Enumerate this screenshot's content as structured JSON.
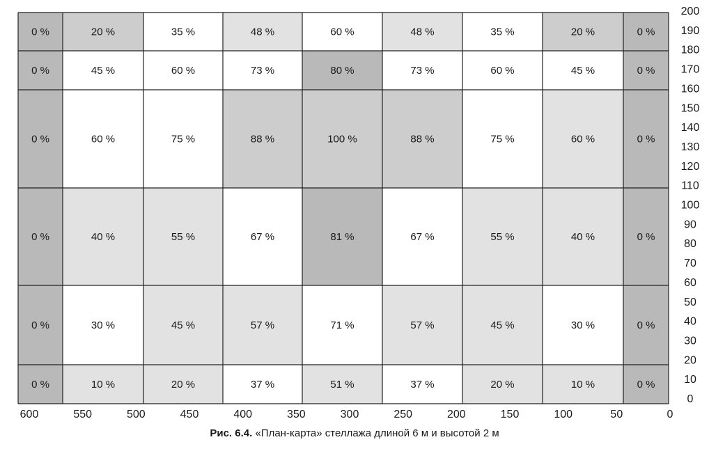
{
  "chart_data": {
    "type": "table",
    "caption_label": "Рис. 6.4.",
    "caption_text": "«План-карта» стеллажа длиной 6 м и высотой 2 м",
    "x_ticks": [
      "600",
      "550",
      "500",
      "450",
      "400",
      "350",
      "300",
      "250",
      "200",
      "150",
      "100",
      "50",
      "0"
    ],
    "y_ticks": [
      "200",
      "190",
      "180",
      "170",
      "160",
      "150",
      "140",
      "130",
      "120",
      "110",
      "100",
      "90",
      "80",
      "70",
      "60",
      "50",
      "40",
      "30",
      "20",
      "10",
      "0"
    ],
    "rows": [
      [
        "0 %",
        "20 %",
        "35 %",
        "48 %",
        "60 %",
        "48 %",
        "35 %",
        "20 %",
        "0 %"
      ],
      [
        "0 %",
        "45 %",
        "60 %",
        "73 %",
        "80 %",
        "73 %",
        "60 %",
        "45 %",
        "0 %"
      ],
      [
        "0 %",
        "60 %",
        "75 %",
        "88 %",
        "100 %",
        "88 %",
        "75 %",
        "60 %",
        "0 %"
      ],
      [
        "0 %",
        "40 %",
        "55 %",
        "67 %",
        "81 %",
        "67 %",
        "55 %",
        "40 %",
        "0 %"
      ],
      [
        "0 %",
        "30 %",
        "45 %",
        "57 %",
        "71 %",
        "57 %",
        "45 %",
        "30 %",
        "0 %"
      ],
      [
        "0 %",
        "10 %",
        "20 %",
        "37 %",
        "51 %",
        "37 %",
        "20 %",
        "10 %",
        "0 %"
      ]
    ],
    "shading": [
      [
        "dark",
        "medium",
        "white",
        "light",
        "white",
        "light",
        "white",
        "medium",
        "dark"
      ],
      [
        "dark",
        "white",
        "white",
        "white",
        "dark",
        "white",
        "white",
        "white",
        "dark"
      ],
      [
        "dark",
        "white",
        "white",
        "medium",
        "medium",
        "medium",
        "white",
        "light",
        "dark"
      ],
      [
        "dark",
        "light",
        "light",
        "white",
        "dark",
        "white",
        "light",
        "light",
        "dark"
      ],
      [
        "dark",
        "white",
        "light",
        "light",
        "white",
        "light",
        "light",
        "white",
        "dark"
      ],
      [
        "dark",
        "light",
        "light",
        "white",
        "light",
        "white",
        "light",
        "light",
        "dark"
      ]
    ],
    "shade_colors": {
      "white": "#ffffff",
      "light": "#e2e2e2",
      "medium": "#cdcdcd",
      "dark": "#b9b9b9"
    },
    "grid": true,
    "legend": "none"
  }
}
